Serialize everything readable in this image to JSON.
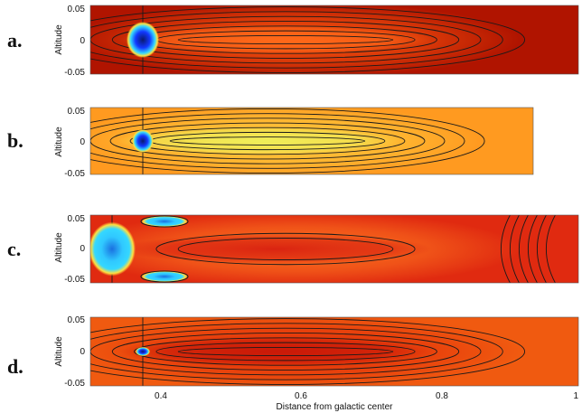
{
  "figure": {
    "panels": [
      {
        "label": "a.",
        "ylabel": "Altitude",
        "yticks": [
          "0.05",
          "0",
          "-0.05"
        ],
        "colors": {
          "bg": "#b01400",
          "glow": "#ff5a10",
          "band": "#ff6a1a",
          "spot": "#1238ff",
          "spot_core": "#0a1a6e"
        }
      },
      {
        "label": "b.",
        "ylabel": "Altitude",
        "yticks": [
          "0.05",
          "0",
          "-0.05"
        ],
        "colors": {
          "bg": "#ff9a20",
          "glow": "#ffd040",
          "band": "#eef05a",
          "spot": "#1238ff",
          "spot_core": "#0a1a6e"
        }
      },
      {
        "label": "c.",
        "ylabel": "Altitude",
        "yticks": [
          "0.05",
          "0",
          "-0.05"
        ],
        "colors": {
          "bg": "#e02a10",
          "glow": "#ff7a20",
          "band": "#d82010",
          "spot": "#30c8ff",
          "spot_core": "#1a70e0"
        }
      },
      {
        "label": "d.",
        "ylabel": "Altitude",
        "yticks": [
          "0.05",
          "0",
          "-0.05"
        ],
        "colors": {
          "bg": "#f05a10",
          "glow": "#e02a08",
          "band": "#c81808",
          "spot": "#1238ff",
          "spot_core": "#0a1a6e"
        }
      }
    ],
    "xaxis": {
      "ticks": [
        "0.4",
        "0.6",
        "0.8",
        "1"
      ],
      "label": "Distance from galactic center"
    }
  }
}
